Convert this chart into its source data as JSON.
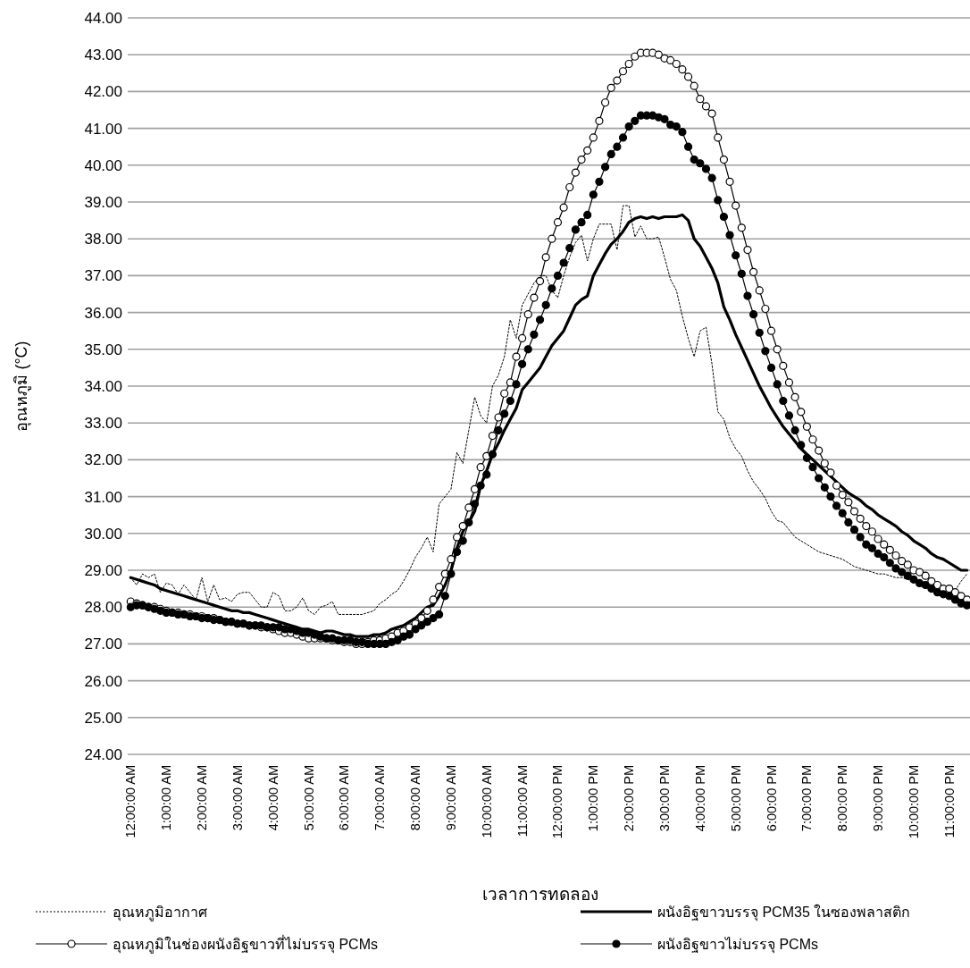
{
  "chart_data": {
    "type": "line",
    "xlabel": "เวลาการทดลอง",
    "ylabel": "อุณหภูมิ (°C)",
    "grid": "y",
    "legend": "bottom",
    "ylim": [
      24,
      44
    ],
    "yticks": [
      {
        "value": 24,
        "label": "24.00"
      },
      {
        "value": 25,
        "label": "25.00"
      },
      {
        "value": 26,
        "label": "26.00"
      },
      {
        "value": 27,
        "label": "27.00"
      },
      {
        "value": 28,
        "label": "28.00"
      },
      {
        "value": 29,
        "label": "29.00"
      },
      {
        "value": 30,
        "label": "30.00"
      },
      {
        "value": 31,
        "label": "31.00"
      },
      {
        "value": 32,
        "label": "32.00"
      },
      {
        "value": 33,
        "label": "33.00"
      },
      {
        "value": 34,
        "label": "34.00"
      },
      {
        "value": 35,
        "label": "35.00"
      },
      {
        "value": 36,
        "label": "36.00"
      },
      {
        "value": 37,
        "label": "37.00"
      },
      {
        "value": 38,
        "label": "38.00"
      },
      {
        "value": 39,
        "label": "39.00"
      },
      {
        "value": 40,
        "label": "40.00"
      },
      {
        "value": 41,
        "label": "41.00"
      },
      {
        "value": 42,
        "label": "42.00"
      },
      {
        "value": 43,
        "label": "43.00"
      },
      {
        "value": 44,
        "label": "44.00"
      }
    ],
    "categories": [
      "12:00:00 AM",
      null,
      null,
      null,
      null,
      null,
      "1:00:00 AM",
      null,
      null,
      null,
      null,
      null,
      "2:00:00 AM",
      null,
      null,
      null,
      null,
      null,
      "3:00:00 AM",
      null,
      null,
      null,
      null,
      null,
      "4:00:00 AM",
      null,
      null,
      null,
      null,
      null,
      "5:00:00 AM",
      null,
      null,
      null,
      null,
      null,
      "6:00:00 AM",
      null,
      null,
      null,
      null,
      null,
      "7:00:00 AM",
      null,
      null,
      null,
      null,
      null,
      "8:00:00 AM",
      null,
      null,
      null,
      null,
      null,
      "9:00:00 AM",
      null,
      null,
      null,
      null,
      null,
      "10:00:00 AM",
      null,
      null,
      null,
      null,
      null,
      "11:00:00 AM",
      null,
      null,
      null,
      null,
      null,
      "12:00:00 PM",
      null,
      null,
      null,
      null,
      null,
      "1:00:00 PM",
      null,
      null,
      null,
      null,
      null,
      "2:00:00 PM",
      null,
      null,
      null,
      null,
      null,
      "3:00:00 PM",
      null,
      null,
      null,
      null,
      null,
      "4:00:00 PM",
      null,
      null,
      null,
      null,
      null,
      "5:00:00 PM",
      null,
      null,
      null,
      null,
      null,
      "6:00:00 PM",
      null,
      null,
      null,
      null,
      null,
      "7:00:00 PM",
      null,
      null,
      null,
      null,
      null,
      "8:00:00 PM",
      null,
      null,
      null,
      null,
      null,
      "9:00:00 PM",
      null,
      null,
      null,
      null,
      null,
      "10:00:00 PM",
      null,
      null,
      null,
      null,
      null,
      "11:00:00 PM",
      null,
      null,
      null
    ],
    "series": [
      {
        "name": "อุณหภูมิอากาศ",
        "color": "#000000",
        "line_style": "dotted",
        "marker": "none",
        "values": [
          28.8,
          28.6,
          28.9,
          28.8,
          28.9,
          28.4,
          28.65,
          28.6,
          28.35,
          28.6,
          28.4,
          28.2,
          28.8,
          28.15,
          28.6,
          28.2,
          28.25,
          28.15,
          28.35,
          28.4,
          28.4,
          28.2,
          28.0,
          28.0,
          28.4,
          28.3,
          27.9,
          27.9,
          28.0,
          28.25,
          27.9,
          27.8,
          28.0,
          28.05,
          28.15,
          27.8,
          27.8,
          27.8,
          27.8,
          27.8,
          27.85,
          27.9,
          28.1,
          28.2,
          28.35,
          28.45,
          28.7,
          29.0,
          29.35,
          29.6,
          29.9,
          29.5,
          30.8,
          31.0,
          31.2,
          32.2,
          31.9,
          32.8,
          33.7,
          33.2,
          33.0,
          34.0,
          34.3,
          34.8,
          35.8,
          35.3,
          36.2,
          36.5,
          36.8,
          37.0,
          37.0,
          36.6,
          36.4,
          37.0,
          37.5,
          37.9,
          38.1,
          37.4,
          38.0,
          38.4,
          38.4,
          38.4,
          37.7,
          38.9,
          38.9,
          38.05,
          38.35,
          38.0,
          38.0,
          38.05,
          37.5,
          36.9,
          36.6,
          35.9,
          35.3,
          34.8,
          35.5,
          35.6,
          34.6,
          33.3,
          33.1,
          32.6,
          32.3,
          32.1,
          31.7,
          31.4,
          31.2,
          30.95,
          30.6,
          30.35,
          30.3,
          30.1,
          29.9,
          29.8,
          29.7,
          29.6,
          29.5,
          29.45,
          29.4,
          29.35,
          29.3,
          29.2,
          29.1,
          29.05,
          29.0,
          28.95,
          28.9,
          28.9,
          28.85,
          28.8,
          28.8,
          28.75,
          28.7,
          28.7,
          28.6,
          28.55,
          28.55,
          28.5,
          28.45,
          28.45,
          28.7,
          28.9
        ]
      },
      {
        "name": "ผนังอิฐขาวบรรจุ PCM35 ในซองพลาสติก",
        "color": "#000000",
        "line_style": "solid",
        "marker": "none",
        "values": [
          28.8,
          28.75,
          28.7,
          28.65,
          28.6,
          28.5,
          28.45,
          28.4,
          28.35,
          28.3,
          28.25,
          28.2,
          28.15,
          28.1,
          28.05,
          28.0,
          27.95,
          27.9,
          27.9,
          27.85,
          27.85,
          27.8,
          27.75,
          27.7,
          27.65,
          27.6,
          27.55,
          27.5,
          27.45,
          27.4,
          27.4,
          27.35,
          27.3,
          27.35,
          27.35,
          27.3,
          27.25,
          27.25,
          27.2,
          27.2,
          27.2,
          27.25,
          27.25,
          27.3,
          27.4,
          27.45,
          27.5,
          27.6,
          27.7,
          27.85,
          28.0,
          28.05,
          28.3,
          28.6,
          29.0,
          29.6,
          30.05,
          30.3,
          30.6,
          31.3,
          31.7,
          32.15,
          32.45,
          32.8,
          33.1,
          33.4,
          33.9,
          34.1,
          34.3,
          34.5,
          34.8,
          35.1,
          35.3,
          35.5,
          35.85,
          36.2,
          36.35,
          36.45,
          37.0,
          37.3,
          37.6,
          37.85,
          38.0,
          38.2,
          38.45,
          38.55,
          38.6,
          38.55,
          38.6,
          38.55,
          38.6,
          38.6,
          38.6,
          38.65,
          38.5,
          38.0,
          37.8,
          37.5,
          37.2,
          36.8,
          36.15,
          35.8,
          35.4,
          35.05,
          34.7,
          34.35,
          34.0,
          33.7,
          33.4,
          33.15,
          32.9,
          32.7,
          32.5,
          32.3,
          32.15,
          32.0,
          31.85,
          31.7,
          31.55,
          31.4,
          31.25,
          31.1,
          31.0,
          30.9,
          30.75,
          30.65,
          30.5,
          30.4,
          30.3,
          30.2,
          30.05,
          29.95,
          29.8,
          29.7,
          29.6,
          29.45,
          29.35,
          29.3,
          29.2,
          29.1,
          29.0,
          29.0
        ]
      },
      {
        "name": "อุณหภูมิในช่องผนังอิฐขาวที่ไม่บรรจุ PCMs",
        "color": "#000000",
        "line_style": "solid",
        "marker": "circle",
        "values": [
          28.15,
          28.1,
          28.05,
          28.0,
          28.0,
          27.95,
          27.9,
          27.85,
          27.85,
          27.8,
          27.8,
          27.75,
          27.75,
          27.7,
          27.7,
          27.65,
          27.6,
          27.6,
          27.55,
          27.55,
          27.5,
          27.5,
          27.45,
          27.45,
          27.4,
          27.35,
          27.3,
          27.3,
          27.25,
          27.2,
          27.15,
          27.15,
          27.15,
          27.15,
          27.1,
          27.1,
          27.05,
          27.05,
          27.0,
          27.0,
          27.05,
          27.1,
          27.1,
          27.15,
          27.2,
          27.3,
          27.35,
          27.45,
          27.55,
          27.7,
          27.9,
          28.2,
          28.55,
          28.9,
          29.3,
          29.9,
          30.2,
          30.7,
          31.2,
          31.8,
          32.1,
          32.65,
          33.15,
          33.8,
          34.1,
          34.8,
          35.3,
          35.95,
          36.4,
          36.85,
          37.5,
          38.0,
          38.45,
          38.85,
          39.4,
          39.8,
          40.15,
          40.4,
          40.75,
          41.2,
          41.7,
          42.1,
          42.3,
          42.55,
          42.75,
          42.95,
          43.05,
          43.05,
          43.05,
          43.0,
          42.9,
          42.85,
          42.75,
          42.6,
          42.4,
          42.15,
          41.8,
          41.6,
          41.4,
          40.75,
          40.15,
          39.55,
          38.9,
          38.3,
          37.7,
          37.1,
          36.6,
          36.1,
          35.5,
          35.0,
          34.55,
          34.1,
          33.7,
          33.3,
          32.9,
          32.55,
          32.25,
          31.9,
          31.65,
          31.3,
          31.05,
          30.85,
          30.6,
          30.4,
          30.2,
          30.05,
          29.85,
          29.7,
          29.55,
          29.4,
          29.25,
          29.15,
          29.0,
          28.95,
          28.85,
          28.7,
          28.6,
          28.5,
          28.5,
          28.4,
          28.3,
          28.2
        ]
      },
      {
        "name": "ผนังอิฐขาวไม่บรรจุ PCMs",
        "color": "#000000",
        "line_style": "solid",
        "marker": "circle",
        "values": [
          28.0,
          28.05,
          28.05,
          28.0,
          27.95,
          27.9,
          27.85,
          27.85,
          27.8,
          27.8,
          27.75,
          27.75,
          27.7,
          27.7,
          27.65,
          27.65,
          27.6,
          27.6,
          27.55,
          27.55,
          27.5,
          27.5,
          27.5,
          27.45,
          27.45,
          27.45,
          27.4,
          27.4,
          27.35,
          27.3,
          27.3,
          27.25,
          27.2,
          27.15,
          27.15,
          27.1,
          27.1,
          27.1,
          27.05,
          27.05,
          27.0,
          27.0,
          27.0,
          27.0,
          27.05,
          27.1,
          27.2,
          27.25,
          27.4,
          27.5,
          27.6,
          27.7,
          27.8,
          28.3,
          28.9,
          29.5,
          29.8,
          30.3,
          30.8,
          31.3,
          31.6,
          32.15,
          32.8,
          33.25,
          33.6,
          34.05,
          34.6,
          35.0,
          35.4,
          35.8,
          36.2,
          36.65,
          37.0,
          37.35,
          37.75,
          38.25,
          38.45,
          38.65,
          39.2,
          39.55,
          39.95,
          40.3,
          40.5,
          40.75,
          41.05,
          41.2,
          41.35,
          41.35,
          41.35,
          41.3,
          41.25,
          41.1,
          41.05,
          40.9,
          40.5,
          40.15,
          40.05,
          39.9,
          39.65,
          39.05,
          38.6,
          38.1,
          37.55,
          37.05,
          36.45,
          35.95,
          35.45,
          34.95,
          34.5,
          34.05,
          33.6,
          33.2,
          32.8,
          32.4,
          32.05,
          31.8,
          31.5,
          31.25,
          31.0,
          30.75,
          30.55,
          30.3,
          30.1,
          29.9,
          29.7,
          29.6,
          29.45,
          29.35,
          29.2,
          29.05,
          28.95,
          28.85,
          28.75,
          28.65,
          28.6,
          28.5,
          28.4,
          28.35,
          28.3,
          28.2,
          28.1,
          28.05
        ]
      }
    ]
  }
}
